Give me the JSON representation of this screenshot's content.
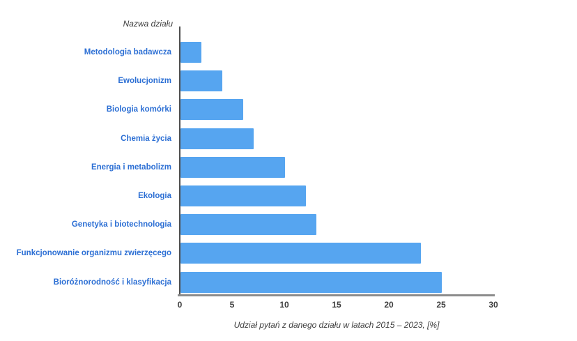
{
  "chart_data": {
    "type": "bar",
    "orientation": "horizontal",
    "y_axis_title": "Nazwa działu",
    "xlabel": "Udział pytań z danego działu w latach 2015 – 2023, [%]",
    "categories": [
      "Metodologia badawcza",
      "Ewolucjonizm",
      "Biologia komórki",
      "Chemia życia",
      "Energia i metabolizm",
      "Ekologia",
      "Genetyka i biotechnologia",
      "Funkcjonowanie organizmu zwierzęcego",
      "Bioróżnorodność i klasyfikacja"
    ],
    "values": [
      2,
      4,
      6,
      7,
      10,
      12,
      13,
      23,
      25
    ],
    "xlim": [
      0,
      30
    ],
    "xticks": [
      0,
      5,
      10,
      15,
      20,
      25,
      30
    ],
    "grid": false,
    "legend": false,
    "colors": {
      "bar": "#56a5f0",
      "category_label": "#2c6fd4",
      "axis_text": "#3d3d3d",
      "x_axis_line": "#8c8c8c",
      "y_axis_line": "#4f4f4f",
      "background": "#ffffff"
    }
  }
}
